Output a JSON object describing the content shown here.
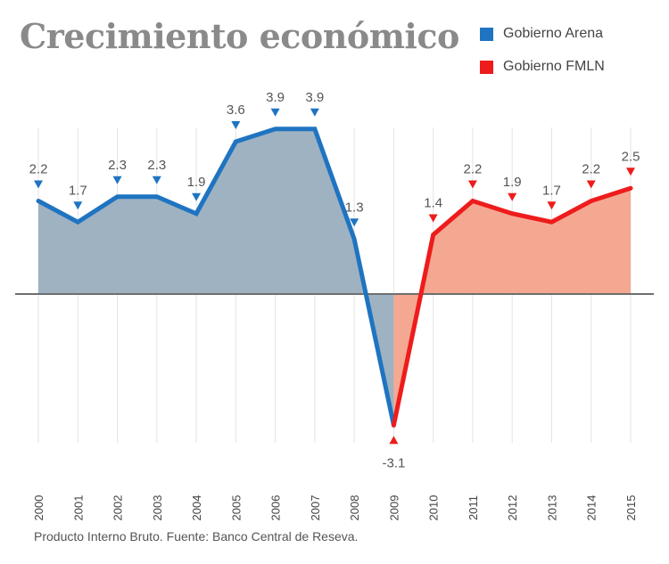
{
  "title": "Crecimiento económico",
  "legend": [
    {
      "label": "Gobierno Arena",
      "color": "#1f74c1"
    },
    {
      "label": "Gobierno FMLN",
      "color": "#ee1c1c"
    }
  ],
  "source": "Producto Interno Bruto. Fuente: Banco Central de Reseva.",
  "chart_data": {
    "type": "area",
    "title": "Crecimiento económico",
    "x": [
      "2000",
      "2001",
      "2002",
      "2003",
      "2004",
      "2005",
      "2006",
      "2007",
      "2008",
      "2009",
      "2010",
      "2011",
      "2012",
      "2013",
      "2014",
      "2015"
    ],
    "values": [
      2.2,
      1.7,
      2.3,
      2.3,
      1.9,
      3.6,
      3.9,
      3.9,
      1.3,
      -3.1,
      1.4,
      2.2,
      1.9,
      1.7,
      2.2,
      2.5
    ],
    "series": [
      {
        "name": "Gobierno Arena",
        "x": [
          "2000",
          "2001",
          "2002",
          "2003",
          "2004",
          "2005",
          "2006",
          "2007",
          "2008",
          "2009"
        ],
        "values": [
          2.2,
          1.7,
          2.3,
          2.3,
          1.9,
          3.6,
          3.9,
          3.9,
          1.3,
          -3.1
        ],
        "color": "#1f74c1",
        "fill": "#9fb2c2"
      },
      {
        "name": "Gobierno FMLN",
        "x": [
          "2009",
          "2010",
          "2011",
          "2012",
          "2013",
          "2014",
          "2015"
        ],
        "values": [
          -3.1,
          1.4,
          2.2,
          1.9,
          1.7,
          2.2,
          2.5
        ],
        "color": "#ee1c1c",
        "fill": "#f4a892"
      }
    ],
    "data_labels": [
      "2.2",
      "1.7",
      "2.3",
      "2.3",
      "1.9",
      "3.6",
      "3.9",
      "3.9",
      "1.3",
      "-3.1",
      "1.4",
      "2.2",
      "1.9",
      "1.7",
      "2.2",
      "2.5"
    ],
    "xlabel": "",
    "ylabel": "",
    "ylim": [
      -3.1,
      3.9
    ],
    "grid": "vertical",
    "legend_position": "top-right"
  }
}
